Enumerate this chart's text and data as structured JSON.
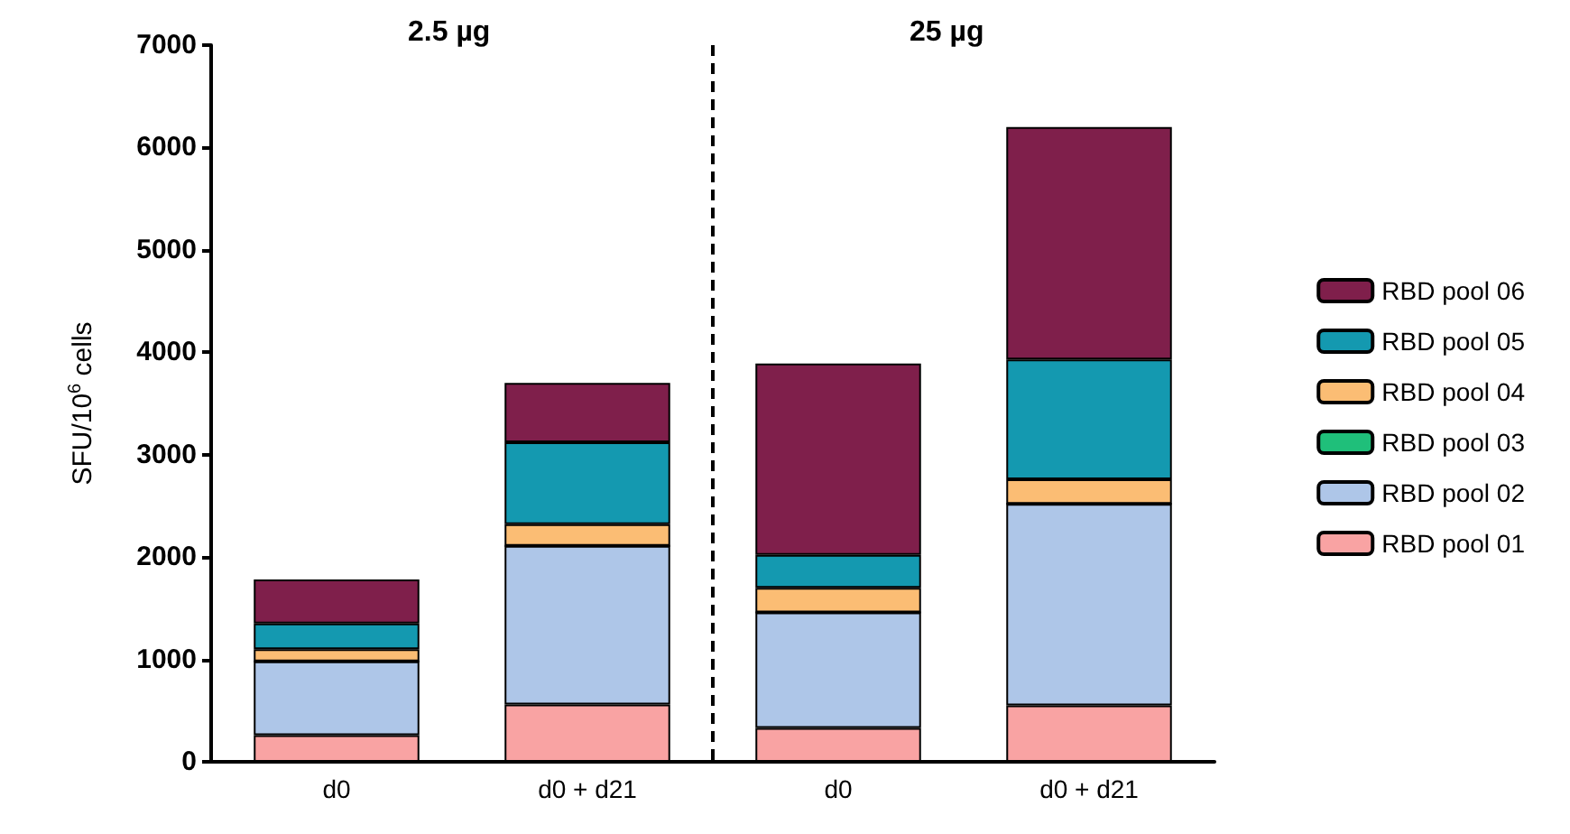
{
  "chart_data": {
    "type": "bar",
    "stacked": true,
    "ylabel": "SFU/10$^{6}$ cells",
    "categories": [
      "d0",
      "d0 + d21",
      "d0",
      "d0 + d21"
    ],
    "series": [
      {
        "name": "RBD pool 01",
        "color": "#f9a3a3",
        "values": [
          260,
          560,
          330,
          550
        ]
      },
      {
        "name": "RBD pool 02",
        "color": "#aec6e8",
        "values": [
          720,
          1550,
          1130,
          1970
        ]
      },
      {
        "name": "RBD pool 03",
        "color": "#1fbf7a",
        "values": [
          0,
          0,
          0,
          0
        ]
      },
      {
        "name": "RBD pool 04",
        "color": "#fbbd74",
        "values": [
          120,
          210,
          240,
          240
        ]
      },
      {
        "name": "RBD pool 05",
        "color": "#1499b0",
        "values": [
          250,
          800,
          320,
          1170
        ]
      },
      {
        "name": "RBD pool 06",
        "color": "#7f1f4b",
        "values": [
          430,
          580,
          1870,
          2270
        ]
      }
    ],
    "ylim": [
      0,
      7000
    ],
    "yticks": [
      0,
      1000,
      2000,
      3000,
      4000,
      5000,
      6000,
      7000
    ],
    "annotations": [
      "2.5 µg",
      "25 µg"
    ],
    "legend": "right"
  }
}
